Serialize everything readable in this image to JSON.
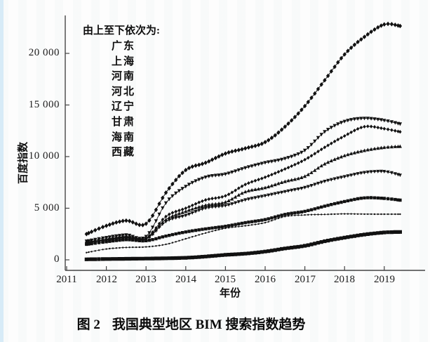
{
  "figure": {
    "caption_label": "图 2",
    "caption_text": "我国典型地区 BIM 搜索指数趋势"
  },
  "colors": {
    "ink": "#111111",
    "axis": "#444444",
    "accent_strip": "#d7ebf7"
  },
  "chart_data": {
    "type": "line",
    "title": "",
    "ylabel": "百度指数",
    "xlabel": "年份",
    "legend_title": "由上至下依次为:",
    "legend_position": "upper-left-inside",
    "grid": false,
    "xlim": [
      2011,
      2019.8
    ],
    "ylim": [
      0,
      23500
    ],
    "x_ticks": [
      2011,
      2012,
      2013,
      2014,
      2015,
      2016,
      2017,
      2018,
      2019
    ],
    "x_tick_labels": [
      "2011",
      "2012",
      "2013",
      "2014",
      "2015",
      "2016",
      "2017",
      "2018",
      "2019"
    ],
    "y_ticks": [
      0,
      5000,
      10000,
      15000,
      20000
    ],
    "y_tick_labels": [
      "0",
      "5 000",
      "10 000",
      "15 000",
      "20 000"
    ],
    "x": [
      2011.5,
      2012,
      2012.5,
      2013,
      2013.5,
      2014,
      2014.5,
      2015,
      2015.5,
      2016,
      2016.5,
      2017,
      2017.5,
      2018,
      2018.5,
      2019,
      2019.4
    ],
    "series": [
      {
        "id": "guangdong",
        "name": "广东",
        "marker": "diamond",
        "marker_size": 2.7,
        "line_width": 1.0,
        "values": [
          2500,
          3300,
          3800,
          3500,
          6500,
          8700,
          9400,
          10300,
          10800,
          11400,
          12900,
          14900,
          17400,
          19900,
          21600,
          22800,
          22650
        ]
      },
      {
        "id": "shanghai",
        "name": "上海",
        "marker": "triangle-down",
        "marker_size": 2.4,
        "line_width": 0.9,
        "values": [
          1800,
          2150,
          2400,
          2250,
          5500,
          7100,
          8000,
          8300,
          8900,
          9400,
          9800,
          10600,
          12400,
          13400,
          13700,
          13500,
          13150
        ]
      },
      {
        "id": "henan",
        "name": "河南",
        "marker": "diamond",
        "marker_size": 2.2,
        "line_width": 0.9,
        "values": [
          1700,
          2000,
          2250,
          2100,
          4200,
          5000,
          5800,
          6200,
          7300,
          8000,
          8800,
          9700,
          10900,
          12000,
          12900,
          12700,
          12400
        ]
      },
      {
        "id": "hebei",
        "name": "河北",
        "marker": "triangle-up",
        "marker_size": 2.3,
        "line_width": 0.9,
        "values": [
          1650,
          1950,
          2200,
          2050,
          3900,
          4700,
          5300,
          5600,
          6600,
          7000,
          7600,
          8100,
          9300,
          10100,
          10600,
          10900,
          11000
        ]
      },
      {
        "id": "liaoning",
        "name": "辽宁",
        "marker": "triangle-down",
        "marker_size": 2.3,
        "line_width": 0.9,
        "values": [
          1600,
          1900,
          2150,
          2000,
          3700,
          4300,
          5000,
          5250,
          5800,
          6200,
          6600,
          7000,
          7600,
          8050,
          8450,
          8550,
          8200
        ]
      },
      {
        "id": "gansu",
        "name": "甘肃",
        "marker": "square",
        "marker_size": 2.2,
        "line_width": 0.9,
        "values": [
          1500,
          1750,
          1950,
          1850,
          2300,
          2700,
          3000,
          3250,
          3600,
          3900,
          4400,
          4700,
          5200,
          5650,
          6000,
          5950,
          5780
        ]
      },
      {
        "id": "hainan",
        "name": "海南",
        "marker": "dot",
        "marker_size": 1.2,
        "line_width": 0.7,
        "values": [
          700,
          1050,
          1200,
          1250,
          1500,
          2040,
          2600,
          3060,
          3300,
          3600,
          4200,
          4350,
          4400,
          4450,
          4430,
          4420,
          4420
        ]
      },
      {
        "id": "xizang",
        "name": "西藏",
        "marker": "square",
        "marker_size": 2.6,
        "line_width": 1.0,
        "values": [
          50,
          80,
          100,
          120,
          150,
          200,
          320,
          480,
          600,
          800,
          1100,
          1360,
          1800,
          2150,
          2450,
          2650,
          2700
        ]
      }
    ]
  }
}
